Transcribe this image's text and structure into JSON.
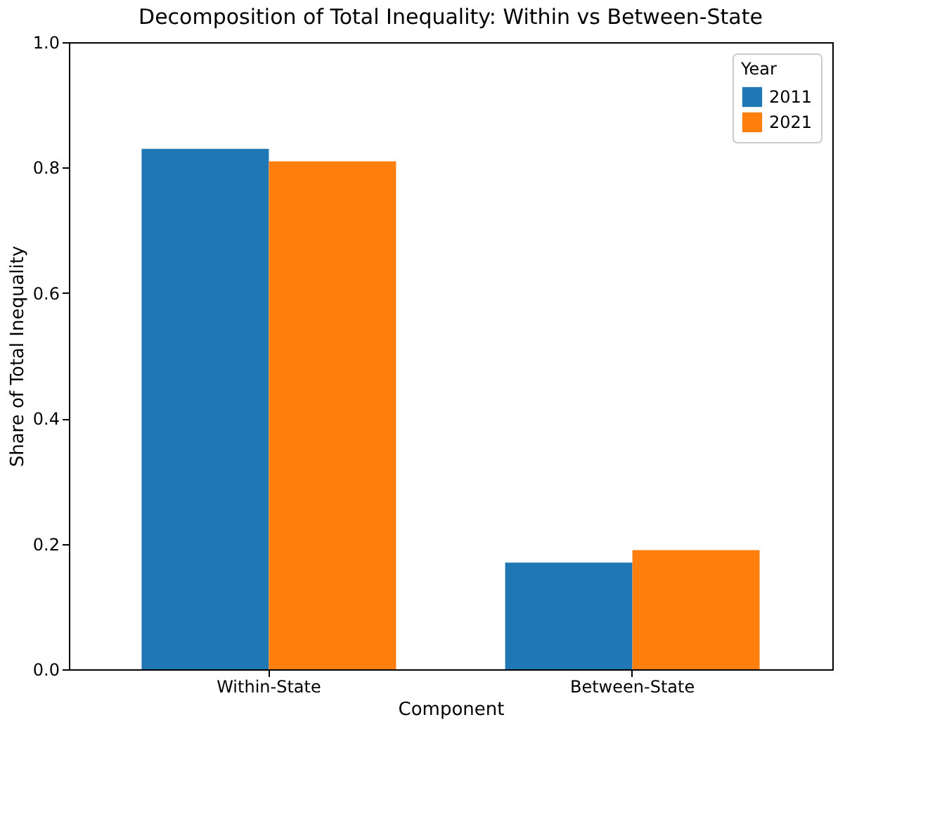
{
  "chart_data": {
    "type": "bar",
    "title": "Decomposition of Total Inequality: Within vs Between-State",
    "xlabel": "Component",
    "ylabel": "Share of Total Inequality",
    "legend_title": "Year",
    "categories": [
      "Within-State",
      "Between-State"
    ],
    "series": [
      {
        "name": "2011",
        "color": "#1f77b4",
        "values": [
          0.83,
          0.17
        ]
      },
      {
        "name": "2021",
        "color": "#ff7f0e",
        "values": [
          0.81,
          0.19
        ]
      }
    ],
    "ylim": [
      0.0,
      1.0
    ],
    "yticks": [
      {
        "value": 0,
        "label": "0.0"
      },
      {
        "value": 0.2,
        "label": "0.2"
      },
      {
        "value": 0.4,
        "label": "0.4"
      },
      {
        "value": 0.6,
        "label": "0.6"
      },
      {
        "value": 0.8,
        "label": "0.8"
      },
      {
        "value": 1.0,
        "label": "1.0"
      }
    ],
    "grid": false,
    "legend": "top right"
  }
}
